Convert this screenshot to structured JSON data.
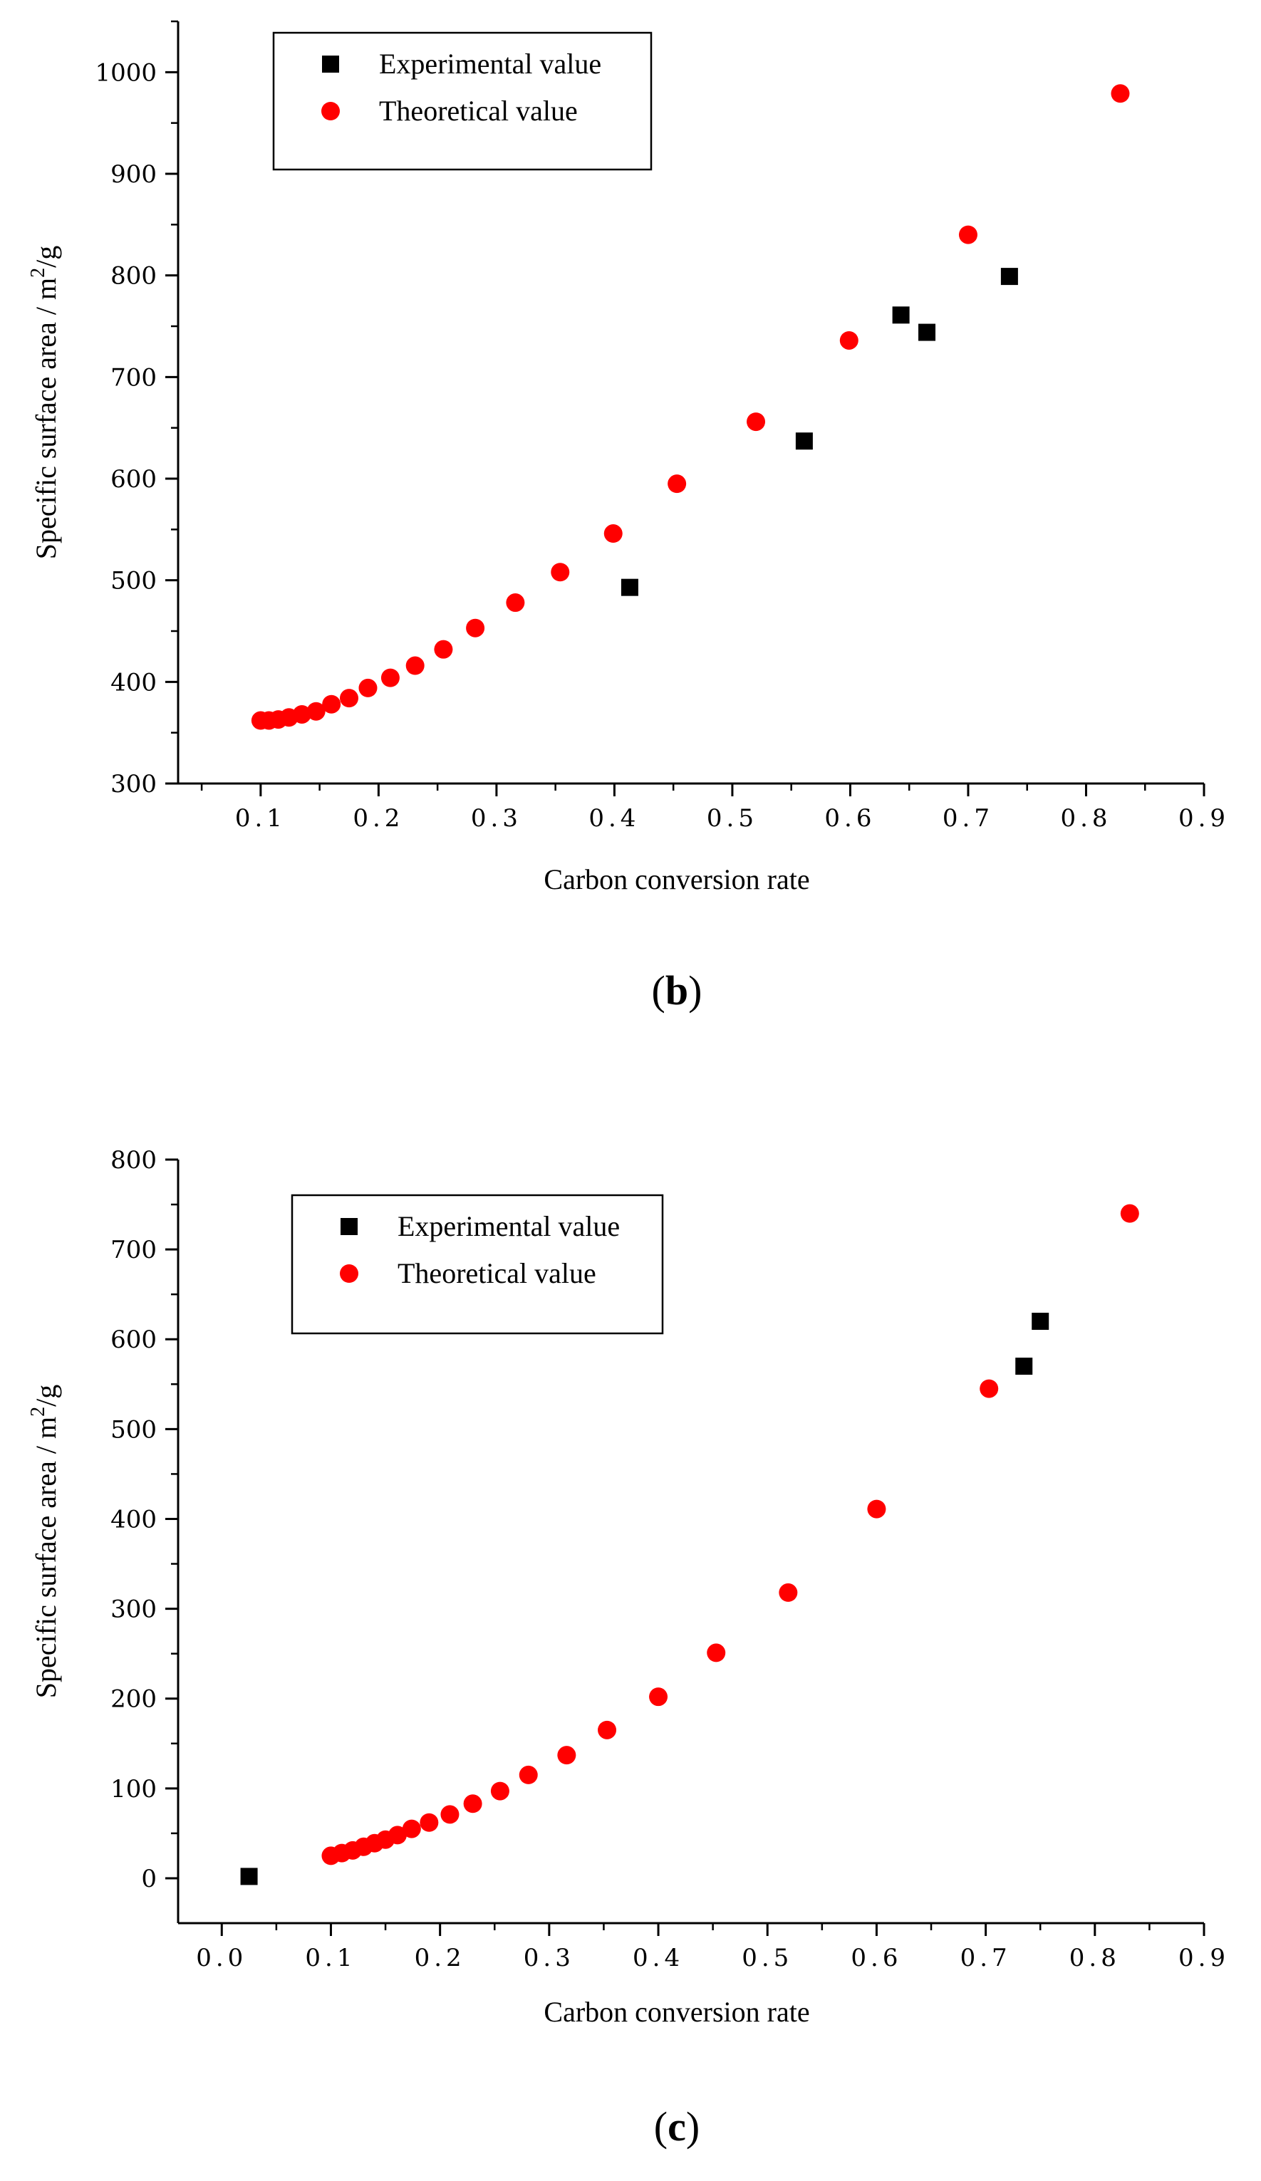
{
  "chart_data": [
    {
      "id": "b",
      "type": "scatter",
      "panel_label": "b",
      "xlabel": "Carbon conversion rate",
      "ylabel_main": "Specific surface area / m",
      "ylabel_sup": "2",
      "ylabel_tail": "/g",
      "xlim": [
        0.03,
        0.9
      ],
      "ylim": [
        300,
        1050
      ],
      "xticks": [
        0.1,
        0.2,
        0.3,
        0.4,
        0.5,
        0.6,
        0.7,
        0.8,
        0.9
      ],
      "xtick_labels": [
        "0.1",
        "0.2",
        "0.3",
        "0.4",
        "0.5",
        "0.6",
        "0.7",
        "0.8",
        "0.9"
      ],
      "yticks": [
        300,
        400,
        500,
        600,
        700,
        800,
        900,
        1000
      ],
      "ytick_labels": [
        "300",
        "400",
        "500",
        "600",
        "700",
        "800",
        "900",
        "1000"
      ],
      "legend": {
        "position": "top-left"
      },
      "series": [
        {
          "name": "Experimental value",
          "marker": "square",
          "color": "#000000",
          "x": [
            0.413,
            0.561,
            0.643,
            0.665,
            0.735
          ],
          "y": [
            493,
            637,
            761,
            744,
            799
          ]
        },
        {
          "name": "Theoretical value",
          "marker": "circle",
          "color": "#ff0000",
          "x": [
            0.1,
            0.107,
            0.115,
            0.124,
            0.135,
            0.147,
            0.16,
            0.175,
            0.191,
            0.21,
            0.231,
            0.255,
            0.282,
            0.316,
            0.354,
            0.399,
            0.453,
            0.52,
            0.599,
            0.7,
            0.829
          ],
          "y": [
            362,
            362,
            363,
            365,
            368,
            371,
            378,
            384,
            394,
            404,
            416,
            432,
            453,
            478,
            508,
            546,
            595,
            656,
            736,
            840,
            979
          ]
        }
      ]
    },
    {
      "id": "c",
      "type": "scatter",
      "panel_label": "c",
      "xlabel": "Carbon conversion rate",
      "ylabel_main": "Specific surface area / m",
      "ylabel_sup": "2",
      "ylabel_tail": "/g",
      "xlim": [
        -0.04,
        0.9
      ],
      "ylim": [
        -50,
        800
      ],
      "xticks": [
        0.0,
        0.1,
        0.2,
        0.3,
        0.4,
        0.5,
        0.6,
        0.7,
        0.8,
        0.9
      ],
      "xtick_labels": [
        "0.0",
        "0.1",
        "0.2",
        "0.3",
        "0.4",
        "0.5",
        "0.6",
        "0.7",
        "0.8",
        "0.9"
      ],
      "yticks": [
        0,
        100,
        200,
        300,
        400,
        500,
        600,
        700,
        800
      ],
      "ytick_labels": [
        "0",
        "100",
        "200",
        "300",
        "400",
        "500",
        "600",
        "700",
        "800"
      ],
      "legend": {
        "position": "top-left"
      },
      "series": [
        {
          "name": "Experimental value",
          "marker": "square",
          "color": "#000000",
          "x": [
            0.025,
            0.735,
            0.75
          ],
          "y": [
            2,
            570,
            620
          ]
        },
        {
          "name": "Theoretical value",
          "marker": "circle",
          "color": "#ff0000",
          "x": [
            0.1,
            0.11,
            0.12,
            0.13,
            0.14,
            0.15,
            0.161,
            0.174,
            0.19,
            0.209,
            0.23,
            0.255,
            0.281,
            0.316,
            0.353,
            0.4,
            0.453,
            0.519,
            0.6,
            0.703,
            0.832
          ],
          "y": [
            25,
            28,
            31,
            35,
            39,
            43,
            48,
            55,
            62,
            71,
            83,
            97,
            115,
            137,
            165,
            202,
            251,
            318,
            411,
            545,
            740
          ]
        }
      ]
    }
  ]
}
